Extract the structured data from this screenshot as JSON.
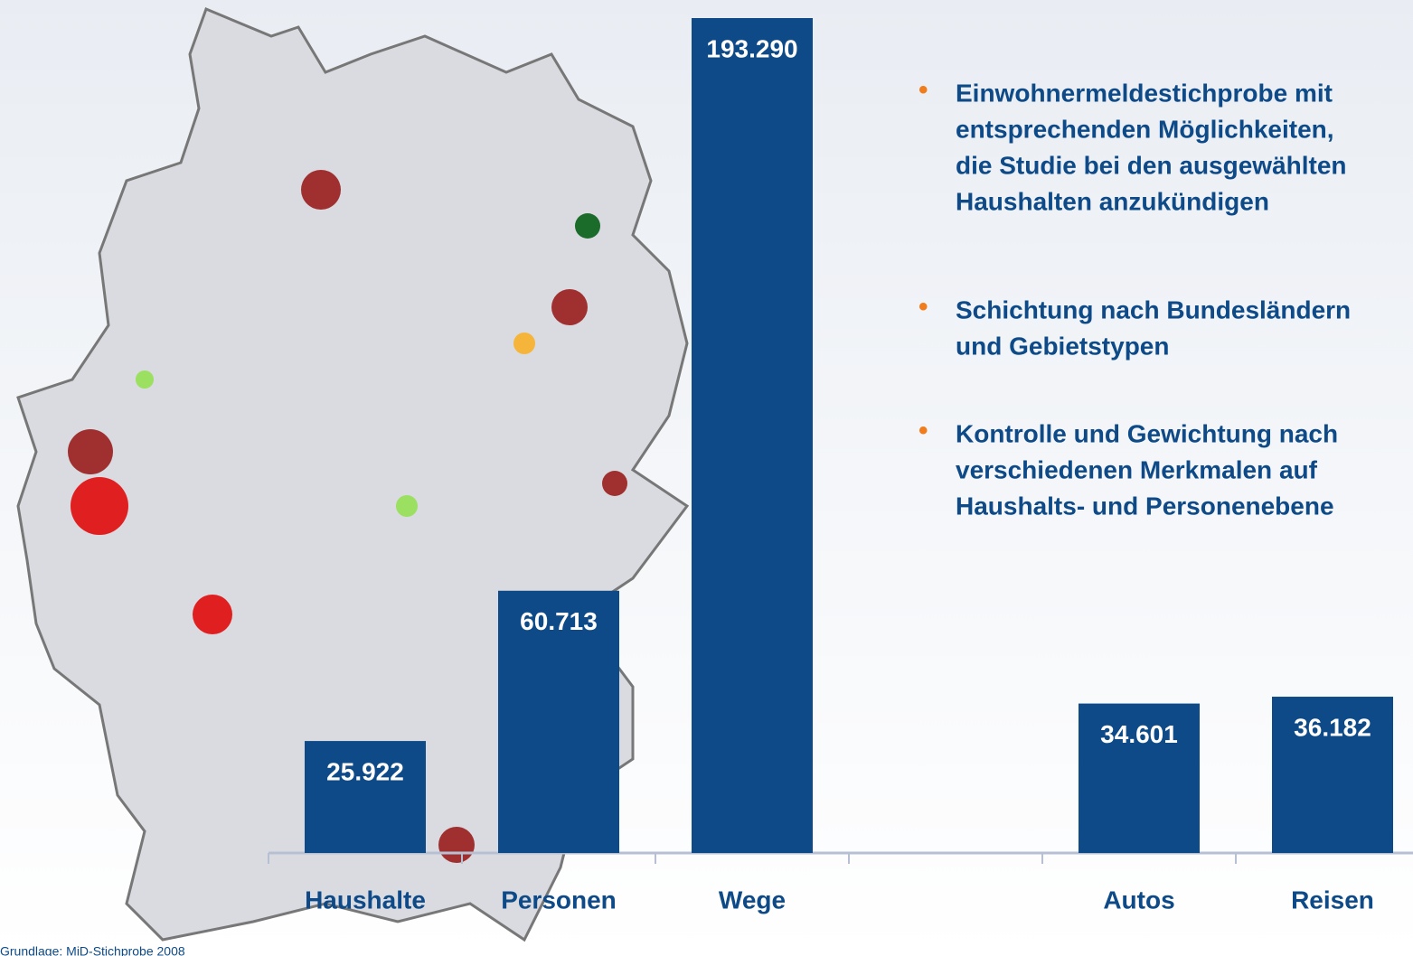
{
  "chart_data": {
    "type": "bar",
    "categories": [
      "Haushalte",
      "Personen",
      "Wege",
      null,
      "Autos",
      "Reisen"
    ],
    "values": [
      25922,
      60713,
      193290,
      null,
      34601,
      36182
    ],
    "value_labels": [
      "25.922",
      "60.713",
      "193.290",
      null,
      "34.601",
      "36.182"
    ],
    "color": "#0d4a87"
  },
  "bullets": [
    [
      "Einwohnermeldestichprobe mit",
      "entsprechenden Möglichkeiten,",
      "die Studie bei den ausgewählten",
      "Haushalten anzukündigen"
    ],
    [
      "Schichtung nach Bundesländern",
      "und Gebietstypen"
    ],
    [
      "Kontrolle und Gewichtung nach",
      "verschiedenen Merkmalen auf",
      "Haushalts- und Personenebene"
    ]
  ],
  "source": "Grundlage: MiD-Stichprobe 2008"
}
